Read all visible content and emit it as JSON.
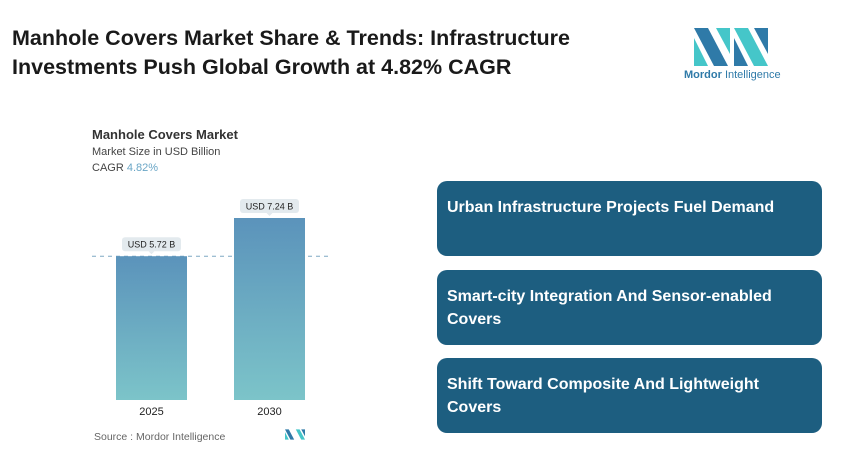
{
  "title": "Manhole Covers Market Share & Trends: Infrastructure Investments Push Global Growth at 4.82% CAGR",
  "logo": {
    "brand": "Mordor",
    "brand2": "Intelligence"
  },
  "chart_data": {
    "type": "bar",
    "title": "Manhole Covers Market",
    "subtitle": "Market Size in USD Billion",
    "cagr_label": "CAGR",
    "cagr_value": "4.82%",
    "categories": [
      "2025",
      "2030"
    ],
    "values": [
      5.72,
      7.24
    ],
    "data_labels": [
      "USD 5.72 B",
      "USD 7.24 B"
    ],
    "colors": {
      "top": "#5b93bb",
      "bottom": "#7cc4c9"
    },
    "source": "Source :  Mordor Intelligence"
  },
  "cards": [
    {
      "label": "Urban Infrastructure Projects Fuel Demand"
    },
    {
      "label": "Smart-city Integration And Sensor-enabled Covers"
    },
    {
      "label": "Shift Toward Composite And Lightweight Covers"
    }
  ],
  "card_color": "#1d5e80"
}
